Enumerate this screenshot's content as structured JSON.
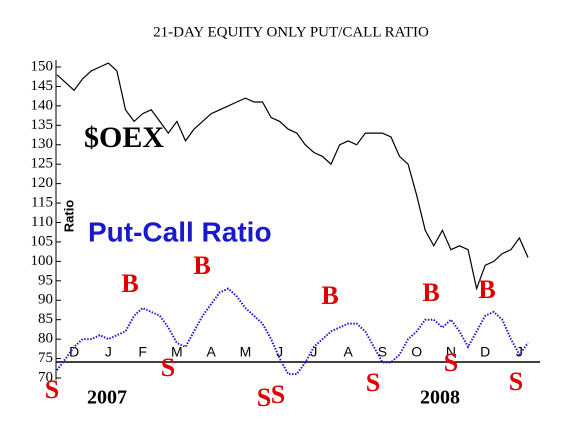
{
  "chart_data": {
    "type": "line",
    "title": "21-DAY EQUITY ONLY PUT/CALL RATIO",
    "y_label": "Ratio",
    "categories": [
      null,
      null,
      "D",
      null,
      null,
      null,
      "J",
      null,
      null,
      null,
      "F",
      null,
      null,
      null,
      "M",
      null,
      null,
      null,
      "A",
      null,
      null,
      null,
      "M",
      null,
      null,
      null,
      "J",
      null,
      null,
      null,
      "J",
      null,
      null,
      null,
      "A",
      null,
      null,
      null,
      "S",
      null,
      null,
      null,
      "O",
      null,
      null,
      null,
      "N",
      null,
      null,
      null,
      "D",
      null,
      null,
      null,
      "J",
      null
    ],
    "series": [
      {
        "name": "$OEX",
        "color": "#000000",
        "values": [
          148,
          146,
          144,
          147,
          149,
          150,
          151,
          149,
          139,
          136,
          138,
          139,
          136,
          133,
          136,
          131,
          134,
          136,
          138,
          139,
          140,
          141,
          142,
          141,
          141,
          137,
          136,
          134,
          133,
          130,
          128,
          127,
          125,
          130,
          131,
          130,
          133,
          133,
          133,
          132,
          127,
          125,
          117,
          108,
          104,
          108,
          103,
          104,
          103,
          93,
          99,
          100,
          102,
          103,
          106,
          101
        ]
      },
      {
        "name": "Put-Call Ratio",
        "color": "#1a1acc",
        "values": [
          72,
          75,
          78,
          80,
          80,
          81,
          80,
          81,
          82,
          86,
          88,
          87,
          86,
          83,
          79,
          78,
          82,
          86,
          89,
          92,
          93,
          91,
          88,
          86,
          84,
          80,
          75,
          71,
          71,
          74,
          78,
          80,
          82,
          83,
          84,
          84,
          82,
          78,
          74,
          74,
          76,
          80,
          82,
          85,
          85,
          83,
          85,
          82,
          78,
          82,
          86,
          87,
          85,
          80,
          76,
          79
        ]
      }
    ],
    "ylim": [
      70,
      150
    ],
    "yticks": [
      70,
      75,
      80,
      85,
      90,
      95,
      100,
      105,
      110,
      115,
      120,
      125,
      130,
      135,
      140,
      145,
      150
    ],
    "annotations": [
      "S",
      "B",
      "S",
      "B",
      "S",
      "S",
      "B",
      "S",
      "B",
      "S",
      "B",
      "S"
    ],
    "year_labels": [
      "2007",
      "2008"
    ]
  }
}
